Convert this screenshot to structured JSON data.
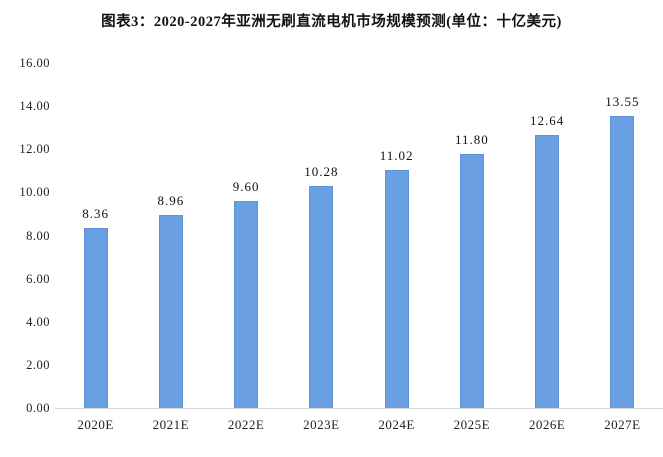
{
  "title": "图表3：2020-2027年亚洲无刷直流电机市场规模预测(单位：十亿美元)",
  "chart_data": {
    "type": "bar",
    "title": "图表3：2020-2027年亚洲无刷直流电机市场规模预测(单位：十亿美元)",
    "categories": [
      "2020E",
      "2021E",
      "2022E",
      "2023E",
      "2024E",
      "2025E",
      "2026E",
      "2027E"
    ],
    "values": [
      8.36,
      8.96,
      9.6,
      10.28,
      11.02,
      11.8,
      12.64,
      13.55
    ],
    "value_labels": [
      "8.36",
      "8.96",
      "9.60",
      "10.28",
      "11.02",
      "11.80",
      "12.64",
      "13.55"
    ],
    "xlabel": "",
    "ylabel": "",
    "ylim": [
      0,
      16
    ],
    "ytick_step": 2,
    "ytick_labels": [
      "0.00",
      "2.00",
      "4.00",
      "6.00",
      "8.00",
      "10.00",
      "12.00",
      "14.00",
      "16.00"
    ],
    "grid": false,
    "legend": false,
    "bar_color": "#6B9FE3",
    "bar_border_color": "#5E92D9",
    "axis_line_color": "#d9d9d9",
    "label_color": "#111111"
  }
}
